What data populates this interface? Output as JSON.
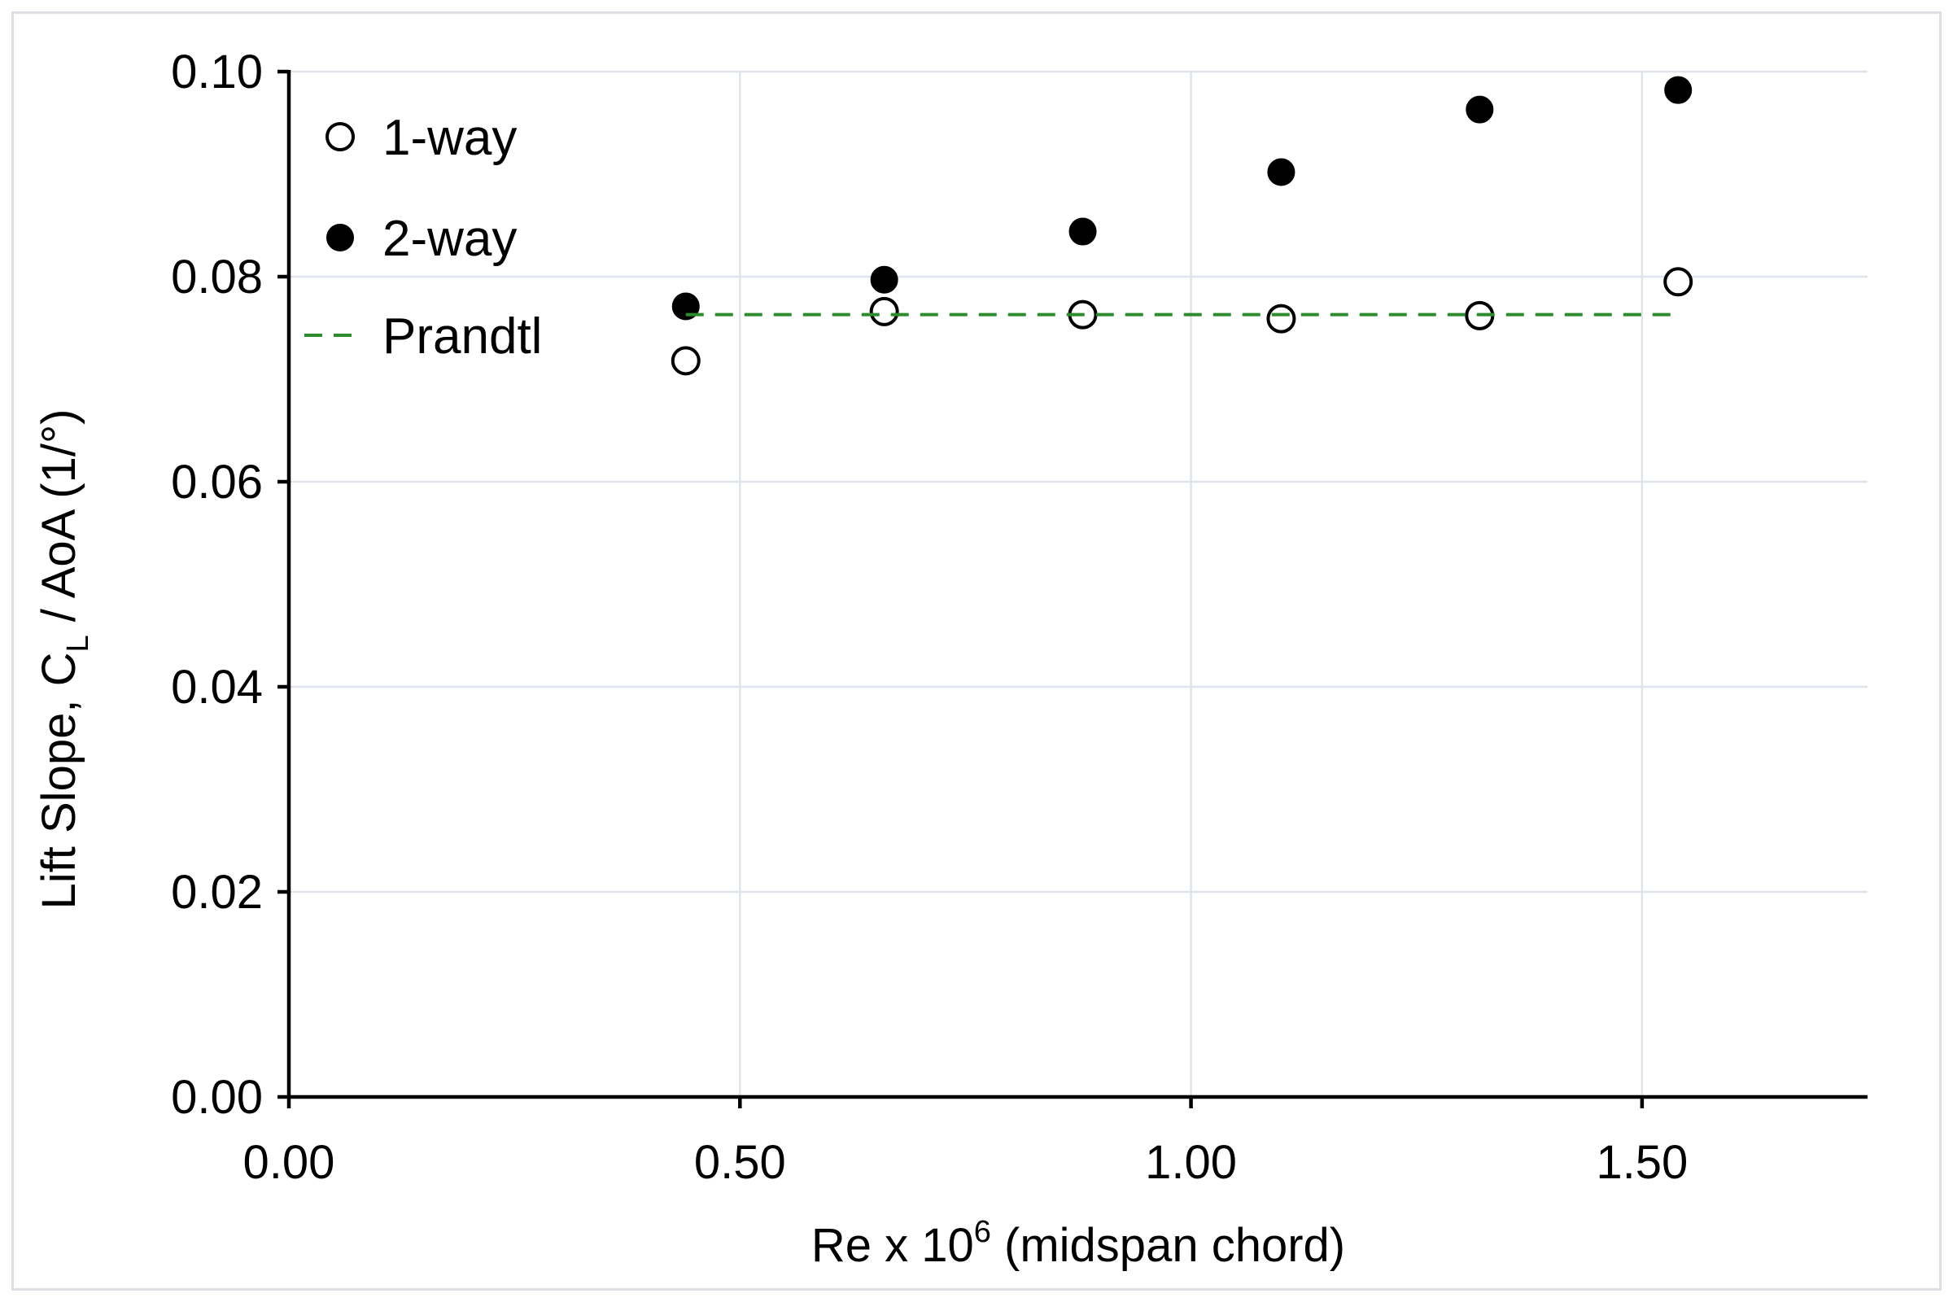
{
  "chart_data": {
    "type": "scatter",
    "xlabel": {
      "prefix": "Re x 10",
      "superscript": "6",
      "suffix": " (midspan chord)"
    },
    "ylabel": {
      "prefix": "Lift Slope, C",
      "subscript": "L",
      "suffix": " / AoA (1/°)"
    },
    "xlim": [
      0,
      1.75
    ],
    "ylim": [
      0,
      0.1
    ],
    "x_ticks": [
      0,
      0.5,
      1.0,
      1.5
    ],
    "x_tick_labels": [
      "0.00",
      "0.50",
      "1.00",
      "1.50"
    ],
    "y_ticks": [
      0,
      0.02,
      0.04,
      0.06,
      0.08,
      0.1
    ],
    "y_tick_labels": [
      "0.00",
      "0.02",
      "0.04",
      "0.06",
      "0.08",
      "0.10"
    ],
    "grid": true,
    "legend_position": "top-left",
    "series": [
      {
        "name": "1-way",
        "marker": "open-circle",
        "color": "#000000",
        "x": [
          0.44,
          0.66,
          0.88,
          1.1,
          1.32,
          1.54
        ],
        "y": [
          0.0718,
          0.0766,
          0.0763,
          0.0759,
          0.0762,
          0.0795
        ]
      },
      {
        "name": "2-way",
        "marker": "filled-circle",
        "color": "#000000",
        "x": [
          0.44,
          0.66,
          0.88,
          1.1,
          1.32,
          1.54
        ],
        "y": [
          0.0771,
          0.0797,
          0.0844,
          0.0902,
          0.0963,
          0.0982
        ]
      },
      {
        "name": "Prandtl",
        "marker": "dashed-line",
        "color": "#2e8b2e",
        "x": [
          0.44,
          1.54
        ],
        "y": [
          0.0763,
          0.0763
        ]
      }
    ]
  }
}
